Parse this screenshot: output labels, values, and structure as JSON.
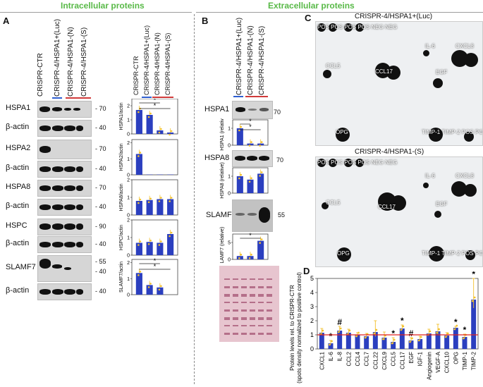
{
  "headers": {
    "intracellular": "Intracellular proteins",
    "extracellular": "Extracellular proteins"
  },
  "panels": {
    "a": "A",
    "b": "B",
    "c": "C",
    "d": "D"
  },
  "panelA": {
    "lanes": [
      "CRISPR-CTR",
      "CRISPR-4/HSPA1+(Luc)",
      "CRISPR-4/HSPA1-(N)",
      "CRISPR-4/HSPA1-(S)"
    ],
    "blots": [
      {
        "label": "HSPA1",
        "mw": [
          "70"
        ]
      },
      {
        "label": "β-actin",
        "mw": [
          "40"
        ]
      },
      {
        "label": "HSPA2",
        "mw": [
          "70"
        ]
      },
      {
        "label": "β-actin",
        "mw": [
          "40"
        ]
      },
      {
        "label": "HSPA8",
        "mw": [
          "70"
        ]
      },
      {
        "label": "β-actin",
        "mw": [
          "40"
        ]
      },
      {
        "label": "HSPC",
        "mw": [
          "90"
        ]
      },
      {
        "label": "β-actin",
        "mw": [
          "40"
        ]
      },
      {
        "label": "SLAMF7",
        "mw": [
          "55",
          "40"
        ]
      },
      {
        "label": "β-actin",
        "mw": [
          "40"
        ]
      }
    ],
    "quant_lanes": [
      "CRISPR-CTR",
      "CRISPR-4/HSPA1+(Luc)",
      "CRISPR-4/HSPA1-(N)",
      "CRISPR-4/HSPA1-(S)"
    ]
  },
  "panelB": {
    "lanes": [
      "CRISPR-4/HSPA1+(Luc)",
      "CRISPR-4/HSPA1-(N)",
      "CRISPR-4/HSPA1-(S)"
    ],
    "blots": [
      {
        "label": "HSPA1",
        "mw": "70"
      },
      {
        "label": "HSPA8",
        "mw": "70"
      },
      {
        "label": "SLAMF7",
        "mw": "55"
      }
    ]
  },
  "panelC": {
    "array1_title": "CRISPR-4/HSPA1+(Luc)",
    "array2_title": "CRISPR-4/HSPA1-(S)",
    "array1_labels": {
      "pos1": "POS POS POS POS NEG NEG",
      "il6": "IL-6",
      "cxcl8": "CXCL8",
      "ccl5": "CCL5",
      "ccl17": "CCL17",
      "egf": "EGF",
      "opg": "OPG",
      "timp": "TIMP-1 TIMP-2 POS POS"
    },
    "array2_labels": {
      "pos1": "POS POS POS POS NEG NEG",
      "il6": "IL-6",
      "cxcl8": "CXCL8",
      "ccl5": "CCL5",
      "ccl17": "CCL17",
      "egf": "EGF",
      "opg": "OPG",
      "timp": "TIMP-1 TIMP-2 POS POS"
    }
  },
  "colors": {
    "bar": "#2b3fbf",
    "dot": "#f2c12e",
    "ref_line": "#e02020",
    "header_green": "#58b947",
    "luc_underline": "#2f5fd0",
    "n_s_underline": "#d03a3a"
  },
  "chart_data": [
    {
      "type": "bar",
      "panel": "A",
      "ylabel": "HSPA1/actin",
      "categories": [
        "CRISPR-CTR",
        "CRISPR-4/HSPA1+(Luc)",
        "CRISPR-4/HSPA1-(N)",
        "CRISPR-4/HSPA1-(S)"
      ],
      "values": [
        1.7,
        1.35,
        0.25,
        0.1
      ],
      "ylim": [
        0,
        2.5
      ],
      "yticks": [
        0,
        1,
        2
      ],
      "annotations": [
        "*",
        "*"
      ]
    },
    {
      "type": "bar",
      "panel": "A",
      "ylabel": "HSPA2/actin",
      "categories": [
        "CRISPR-CTR",
        "CRISPR-4/HSPA1+(Luc)",
        "CRISPR-4/HSPA1-(N)",
        "CRISPR-4/HSPA1-(S)"
      ],
      "values": [
        1.3,
        0.02,
        0.02,
        0.02
      ],
      "ylim": [
        0,
        2.2
      ],
      "yticks": [
        0,
        1,
        2
      ]
    },
    {
      "type": "bar",
      "panel": "A",
      "ylabel": "HSPA8/actin",
      "categories": [
        "CRISPR-CTR",
        "CRISPR-4/HSPA1+(Luc)",
        "CRISPR-4/HSPA1-(N)",
        "CRISPR-4/HSPA1-(S)"
      ],
      "values": [
        0.8,
        0.85,
        0.9,
        0.9
      ],
      "ylim": [
        0,
        2.0
      ],
      "yticks": [
        0,
        1,
        2
      ]
    },
    {
      "type": "bar",
      "panel": "A",
      "ylabel": "HSPC/actin",
      "categories": [
        "CRISPR-CTR",
        "CRISPR-4/HSPA1+(Luc)",
        "CRISPR-4/HSPA1-(N)",
        "CRISPR-4/HSPA1-(S)"
      ],
      "values": [
        0.7,
        0.75,
        0.7,
        1.2
      ],
      "ylim": [
        0,
        2.0
      ],
      "yticks": [
        0,
        1,
        2
      ]
    },
    {
      "type": "bar",
      "panel": "A",
      "ylabel": "SLAMF7/actin",
      "categories": [
        "CRISPR-CTR",
        "CRISPR-4/HSPA1+(Luc)",
        "CRISPR-4/HSPA1-(N)",
        "CRISPR-4/HSPA1-(S)"
      ],
      "values": [
        1.35,
        0.6,
        0.45,
        0.0
      ],
      "ylim": [
        0,
        2.2
      ],
      "yticks": [
        0,
        1,
        2
      ],
      "annotations": [
        "*",
        "*"
      ]
    },
    {
      "type": "bar",
      "panel": "B",
      "ylabel": "HSPA1 (relative)",
      "categories": [
        "CRISPR-4/HSPA1+(Luc)",
        "CRISPR-4/HSPA1-(N)",
        "CRISPR-4/HSPA1-(S)"
      ],
      "values": [
        1.0,
        0.1,
        0.1
      ],
      "ylim": [
        0,
        1.5
      ],
      "yticks": [
        0,
        1
      ],
      "annotations": [
        "*",
        "*"
      ]
    },
    {
      "type": "bar",
      "panel": "B",
      "ylabel": "HSPA8 (relative)",
      "categories": [
        "CRISPR-4/HSPA1+(Luc)",
        "CRISPR-4/HSPA1-(N)",
        "CRISPR-4/HSPA1-(S)"
      ],
      "values": [
        1.0,
        0.8,
        1.15
      ],
      "ylim": [
        0,
        1.5
      ],
      "yticks": [
        0,
        1
      ]
    },
    {
      "type": "bar",
      "panel": "B",
      "ylabel": "SLAMF7 (relative)",
      "categories": [
        "CRISPR-4/HSPA1+(Luc)",
        "CRISPR-4/HSPA1-(N)",
        "CRISPR-4/HSPA1-(S)"
      ],
      "values": [
        1.0,
        1.0,
        5.5
      ],
      "ylim": [
        0,
        7.5
      ],
      "yticks": [
        0,
        5
      ],
      "annotations": [
        "*"
      ]
    },
    {
      "type": "bar",
      "panel": "D",
      "ylabel": "Protein levels rel. to CRISPR-CTR (spots density normalized to positive control)",
      "categories": [
        "CXCL1",
        "IL-6",
        "IL-8",
        "CCL2",
        "CCL4",
        "CCL7",
        "CCL22",
        "CXCL9",
        "CCL5",
        "CCL17",
        "EGF",
        "IGF-1",
        "Angiogenin",
        "VEGF-A",
        "CXCL10",
        "OPG",
        "TIMP-1",
        "TIMP-2"
      ],
      "values": [
        1.15,
        0.4,
        1.3,
        1.15,
        1.0,
        0.9,
        1.2,
        0.8,
        0.5,
        1.45,
        0.6,
        0.7,
        1.1,
        1.25,
        0.95,
        1.5,
        0.85,
        3.5
      ],
      "errors": [
        0.3,
        0.2,
        0.3,
        0.25,
        0.15,
        0.2,
        0.8,
        0.4,
        0.3,
        0.25,
        0.2,
        0.2,
        0.3,
        0.5,
        0.2,
        0.1,
        0.2,
        1.5
      ],
      "annotations": [
        "",
        "*",
        "#",
        "",
        "",
        "",
        "",
        "",
        "*",
        "*",
        "#",
        "",
        "",
        "",
        "",
        "*",
        "*",
        "*"
      ],
      "ylim": [
        0,
        5
      ],
      "yticks": [
        0,
        1,
        2,
        3,
        4,
        5
      ],
      "reference_line": 1
    }
  ]
}
